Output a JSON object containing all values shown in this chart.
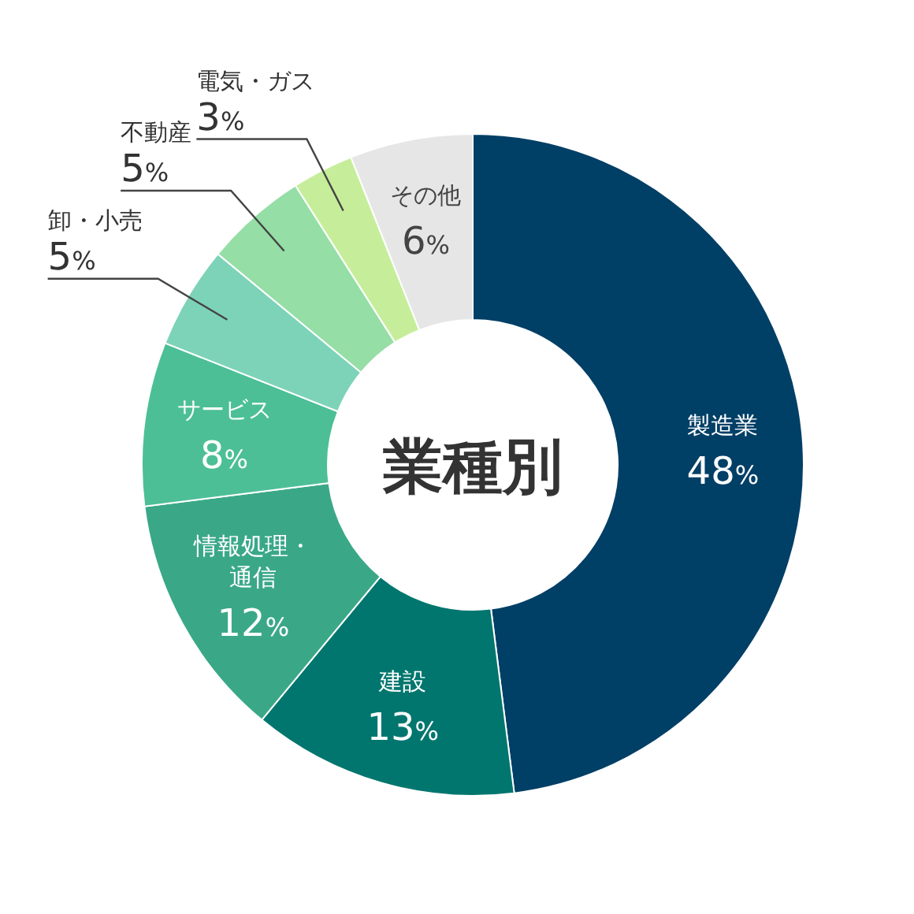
{
  "chart_data": {
    "type": "donut",
    "title": "業種別",
    "categories": [
      "製造業",
      "建設",
      "情報処理・通信",
      "サービス",
      "卸・小売",
      "不動産",
      "電気・ガス",
      "その他"
    ],
    "values": [
      48,
      13,
      12,
      8,
      5,
      5,
      3,
      6
    ],
    "value_labels": [
      "48%",
      "13%",
      "12%",
      "8%",
      "5%",
      "5%",
      "3%",
      "6%"
    ],
    "colors": [
      "#003f66",
      "#00766e",
      "#3aa887",
      "#4cbf97",
      "#7dd3b8",
      "#95dea6",
      "#c6ee9a",
      "#e6e6e6"
    ]
  }
}
